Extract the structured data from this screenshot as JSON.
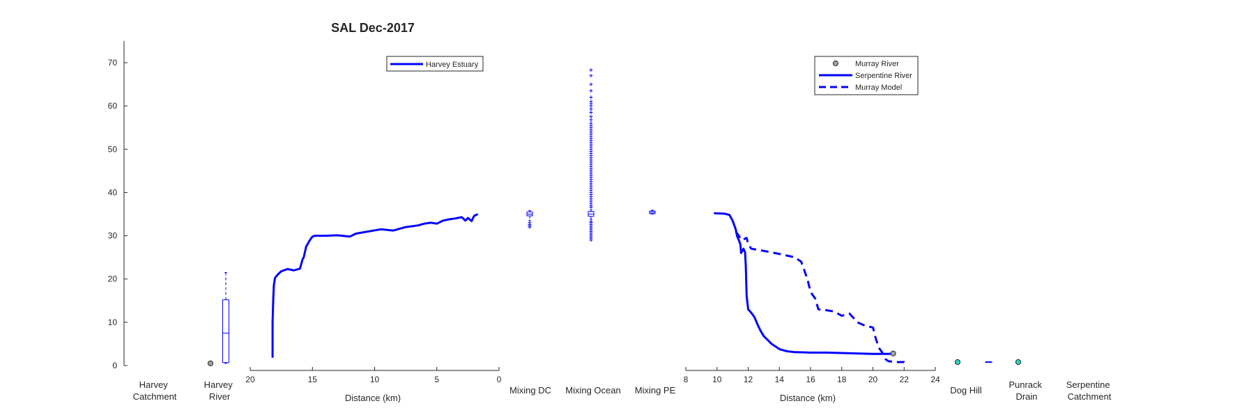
{
  "title": "SAL Dec-2017",
  "colors": {
    "series": "#0000ff",
    "axis": "#262626",
    "marker_grey": "#a0a0a0",
    "marker_teal": "#27d6c0"
  },
  "y_axis": {
    "ylim": [
      0,
      75
    ],
    "ticks": [
      0,
      10,
      20,
      30,
      40,
      50,
      60,
      70
    ]
  },
  "categories": {
    "harvey_catchment": [
      "Harvey",
      "Catchment"
    ],
    "harvey_river": [
      "Harvey",
      "River"
    ],
    "mixing_dc": "Mixing DC",
    "mixing_ocean": "Mixing Ocean",
    "mixing_pe": "Mixing PE",
    "dog_hill": "Dog Hill",
    "punrack_drain": [
      "Punrack",
      "Drain"
    ],
    "serpentine_catchment": [
      "Serpentine",
      "Catchment"
    ]
  },
  "legends": {
    "left": [
      "Harvey Estuary"
    ],
    "right": [
      "Murray River",
      "Serpentine River",
      "Murray Model"
    ]
  },
  "chart_data": {
    "type": "line",
    "title": "SAL Dec-2017",
    "ylim": [
      0,
      75
    ],
    "yticks": [
      0,
      10,
      20,
      30,
      40,
      50,
      60,
      70
    ],
    "grid": false,
    "panels": [
      {
        "name": "harvey-estuary",
        "xlabel": "Distance (km)",
        "xlim": [
          20,
          0
        ],
        "xticks": [
          20,
          15,
          10,
          5,
          0
        ],
        "legend_location": "top",
        "series": [
          {
            "name": "Harvey Estuary",
            "style": "solid",
            "x": [
              18.2,
              18.2,
              18.15,
              18.1,
              18.0,
              17.8,
              17.5,
              17.0,
              16.5,
              16.0,
              15.8,
              15.7,
              15.5,
              15.2,
              15.0,
              14.8,
              14.0,
              13.0,
              12.0,
              11.5,
              10.5,
              9.5,
              8.5,
              7.5,
              6.5,
              6.0,
              5.5,
              5.0,
              4.5,
              4.0,
              3.5,
              3.0,
              2.7,
              2.5,
              2.2,
              2.0,
              1.7
            ],
            "y": [
              1.8,
              10.0,
              15.0,
              18.5,
              20.3,
              21.0,
              21.8,
              22.3,
              22.0,
              22.4,
              24.5,
              25.0,
              27.5,
              29.0,
              29.8,
              30.0,
              30.0,
              30.1,
              29.8,
              30.5,
              31.0,
              31.5,
              31.2,
              32.0,
              32.4,
              32.8,
              33.0,
              32.8,
              33.5,
              33.8,
              34.0,
              34.3,
              33.5,
              34.1,
              33.4,
              34.6,
              35.0
            ]
          }
        ]
      },
      {
        "name": "serpentine-murray",
        "xlabel": "Distance (km)",
        "xlim": [
          8,
          24
        ],
        "xticks": [
          8,
          10,
          12,
          14,
          16,
          18,
          20,
          22,
          24
        ],
        "legend_location": "top-right",
        "series": [
          {
            "name": "Serpentine River",
            "style": "solid",
            "x": [
              9.8,
              10.5,
              10.8,
              11.0,
              11.2,
              11.3,
              11.4,
              11.5,
              11.55,
              11.7,
              11.8,
              11.85,
              11.9,
              12.0,
              12.2,
              12.4,
              12.6,
              12.8,
              13.0,
              13.5,
              14.0,
              14.5,
              15.0,
              16.0,
              17.0,
              18.0,
              19.0,
              20.0,
              21.0,
              21.3
            ],
            "y": [
              35.2,
              35.1,
              34.8,
              33.5,
              31.5,
              29.8,
              29.0,
              28.0,
              26.0,
              27.0,
              26.2,
              23.0,
              16.0,
              13.0,
              12.2,
              11.2,
              9.5,
              8.0,
              6.8,
              5.0,
              3.8,
              3.3,
              3.1,
              3.0,
              3.0,
              2.9,
              2.8,
              2.7,
              2.7,
              2.8
            ]
          },
          {
            "name": "Murray Model",
            "style": "dashed",
            "x": [
              11.2,
              11.4,
              11.6,
              11.9,
              12.0,
              12.2,
              13.0,
              14.0,
              15.0,
              15.4,
              15.8,
              16.0,
              16.3,
              16.5,
              17.0,
              17.5,
              18.0,
              18.5,
              19.0,
              19.5,
              20.0,
              20.2,
              20.4,
              20.6,
              20.8,
              21.0,
              21.5,
              22.0,
              22.1
            ],
            "y": [
              31.0,
              30.0,
              29.0,
              29.5,
              28.0,
              27.0,
              26.5,
              25.8,
              25.0,
              24.0,
              20.0,
              17.0,
              15.5,
              13.0,
              12.8,
              12.5,
              11.5,
              12.0,
              10.0,
              9.2,
              8.8,
              6.0,
              4.0,
              3.0,
              1.5,
              1.0,
              0.8,
              0.8,
              0.6
            ]
          }
        ],
        "points": [
          {
            "name": "Murray River",
            "x": 21.3,
            "y": 2.8
          }
        ]
      }
    ],
    "boxplots": [
      {
        "category": "Harvey River",
        "q1": 0.7,
        "median": 7.5,
        "q3": 15.2,
        "whisker_low": 0.5,
        "whisker_high": 21.5,
        "outliers": []
      },
      {
        "category": "Mixing DC",
        "q1": 34.6,
        "median": 35.0,
        "q3": 35.5,
        "whisker_low": 33.5,
        "whisker_high": 35.8,
        "outliers": [
          33.0,
          32.6,
          32.3,
          32.0
        ]
      },
      {
        "category": "Mixing Ocean",
        "q1": 34.5,
        "median": 35.0,
        "q3": 35.6,
        "whisker_low": 33.8,
        "whisker_high": 36.0,
        "outliers": [
          68.3,
          67.0,
          65.0,
          63.5,
          62.0,
          61.0,
          60.5,
          60.0,
          59.3,
          58.5,
          57.5,
          56.8,
          56.0,
          55.5,
          55.0,
          54.5,
          54.0,
          53.5,
          53.0,
          52.5,
          52.0,
          51.5,
          51.0,
          50.5,
          50.0,
          49.5,
          49.0,
          48.5,
          48.0,
          47.5,
          47.0,
          46.5,
          46.0,
          45.5,
          45.0,
          44.5,
          44.0,
          43.5,
          43.0,
          42.5,
          42.0,
          41.5,
          41.0,
          40.5,
          40.0,
          39.5,
          39.0,
          38.5,
          38.0,
          37.5,
          37.0,
          36.6,
          33.3,
          33.0,
          32.6,
          32.2,
          31.8,
          31.4,
          31.0,
          30.6,
          30.2,
          29.8,
          29.4,
          29.0
        ]
      },
      {
        "category": "Mixing PE",
        "q1": 35.1,
        "median": 35.4,
        "q3": 35.7,
        "whisker_low": 35.0,
        "whisker_high": 35.9,
        "outliers": []
      }
    ],
    "points": [
      {
        "category": "Harvey River",
        "value": 0.5,
        "color": "grey"
      },
      {
        "category": "Dog Hill",
        "value": 0.8,
        "color": "teal"
      },
      {
        "category": "Punrack Drain",
        "value": 0.8,
        "color": "teal"
      }
    ],
    "annotations": [
      {
        "between": [
          "Dog Hill",
          "Punrack Drain"
        ],
        "style": "dash",
        "value": 0.8
      }
    ]
  }
}
